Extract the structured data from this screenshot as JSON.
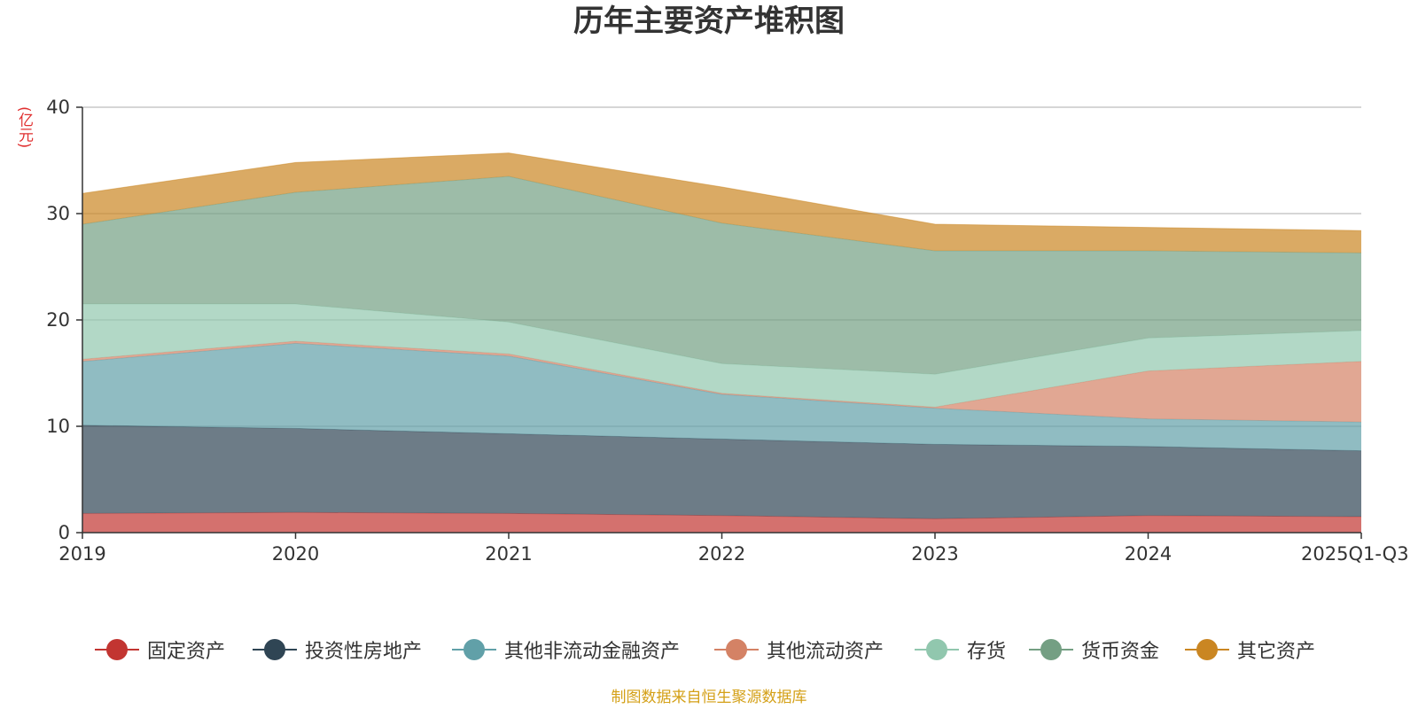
{
  "title": "历年主要资产堆积图",
  "unit_label": "(亿元)",
  "source_note": "制图数据来自恒生聚源数据库",
  "chart_data": {
    "type": "area",
    "stacked": true,
    "title": "历年主要资产堆积图",
    "ylabel": "(亿元)",
    "ylim": [
      0,
      40
    ],
    "yticks": [
      0,
      10,
      20,
      30,
      40
    ],
    "grid": true,
    "legend_position": "bottom",
    "categories": [
      "2019",
      "2020",
      "2021",
      "2022",
      "2023",
      "2024",
      "2025Q1-Q3"
    ],
    "series": [
      {
        "name": "固定资产",
        "color": "#c23531",
        "values": [
          1.8,
          1.9,
          1.8,
          1.6,
          1.3,
          1.6,
          1.5
        ]
      },
      {
        "name": "投资性房地产",
        "color": "#2f4554",
        "values": [
          8.3,
          7.9,
          7.5,
          7.2,
          7.0,
          6.5,
          6.2
        ]
      },
      {
        "name": "其他非流动金融资产",
        "color": "#61a0a8",
        "values": [
          6.0,
          8.0,
          7.3,
          4.2,
          3.4,
          2.6,
          2.7
        ]
      },
      {
        "name": "其他流动资产",
        "color": "#d48265",
        "values": [
          0.2,
          0.2,
          0.2,
          0.1,
          0.1,
          4.5,
          5.7
        ]
      },
      {
        "name": "存货",
        "color": "#91c7ae",
        "values": [
          5.2,
          3.5,
          3.0,
          2.8,
          3.1,
          3.1,
          2.9
        ]
      },
      {
        "name": "货币资金",
        "color": "#749f83",
        "values": [
          7.5,
          10.5,
          13.7,
          13.2,
          11.6,
          8.2,
          7.3
        ]
      },
      {
        "name": "其它资产",
        "color": "#ca8622",
        "values": [
          2.9,
          2.8,
          2.2,
          3.4,
          2.5,
          2.2,
          2.1
        ]
      }
    ]
  }
}
